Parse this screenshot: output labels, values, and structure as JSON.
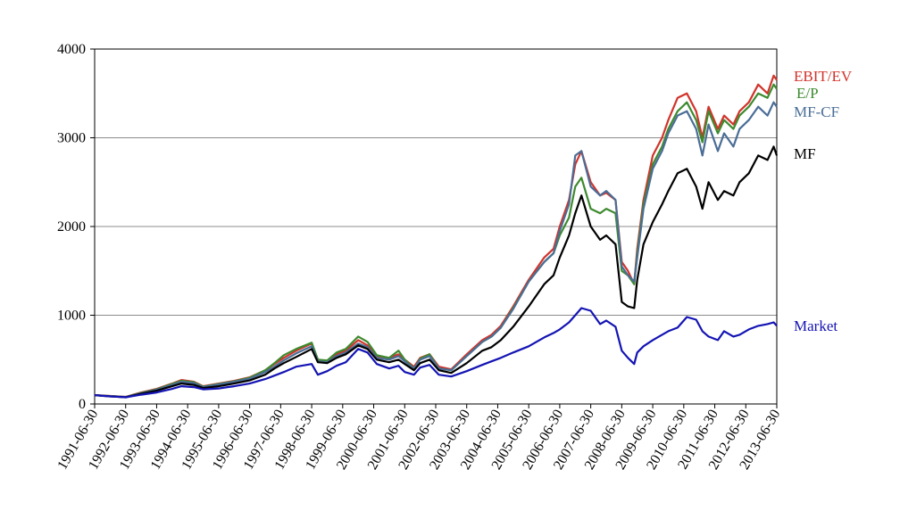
{
  "chart_data": {
    "type": "line",
    "title": "",
    "xlabel": "",
    "ylabel": "",
    "ylim": [
      0,
      4000
    ],
    "yticks": [
      0,
      1000,
      2000,
      3000,
      4000
    ],
    "xlim": [
      1991.5,
      2013.5
    ],
    "xtick_labels": [
      "1991-06-30",
      "1992-06-30",
      "1993-06-30",
      "1994-06-30",
      "1995-06-30",
      "1996-06-30",
      "1997-06-30",
      "1998-06-30",
      "1999-06-30",
      "2000-06-30",
      "2001-06-30",
      "2002-06-30",
      "2003-06-30",
      "2004-06-30",
      "2005-06-30",
      "2006-06-30",
      "2007-06-30",
      "2008-06-30",
      "2009-06-30",
      "2010-06-30",
      "2011-06-30",
      "2012-06-30",
      "2013-06-30"
    ],
    "grid": "horizontal",
    "legend": "right, labels at line ends",
    "series": [
      {
        "name": "EBIT/EV",
        "color": "#d0342c",
        "x": [
          1991.5,
          1992.0,
          1992.5,
          1993.0,
          1993.5,
          1994.0,
          1994.3,
          1994.7,
          1995.0,
          1995.5,
          1996.0,
          1996.5,
          1997.0,
          1997.3,
          1997.6,
          1998.0,
          1998.5,
          1998.7,
          1999.0,
          1999.3,
          1999.6,
          2000.0,
          2000.3,
          2000.6,
          2001.0,
          2001.3,
          2001.5,
          2001.8,
          2002.0,
          2002.3,
          2002.6,
          2003.0,
          2003.5,
          2004.0,
          2004.3,
          2004.6,
          2005.0,
          2005.5,
          2006.0,
          2006.3,
          2006.5,
          2006.8,
          2007.0,
          2007.2,
          2007.5,
          2007.8,
          2008.0,
          2008.3,
          2008.5,
          2008.7,
          2008.9,
          2009.0,
          2009.2,
          2009.5,
          2009.8,
          2010.0,
          2010.3,
          2010.6,
          2010.9,
          2011.1,
          2011.3,
          2011.6,
          2011.8,
          2012.1,
          2012.3,
          2012.6,
          2012.9,
          2013.2,
          2013.4,
          2013.5
        ],
        "y": [
          100,
          90,
          80,
          130,
          170,
          230,
          270,
          250,
          200,
          230,
          260,
          300,
          380,
          450,
          520,
          600,
          680,
          500,
          480,
          560,
          600,
          720,
          660,
          540,
          520,
          560,
          500,
          420,
          520,
          560,
          420,
          390,
          560,
          720,
          780,
          880,
          1100,
          1400,
          1650,
          1750,
          2000,
          2300,
          2700,
          2850,
          2500,
          2350,
          2380,
          2300,
          1600,
          1500,
          1350,
          1750,
          2300,
          2800,
          3000,
          3200,
          3450,
          3500,
          3300,
          3000,
          3350,
          3100,
          3250,
          3150,
          3300,
          3400,
          3600,
          3500,
          3700,
          3650
        ]
      },
      {
        "name": "E/P",
        "color": "#3d8a2e",
        "x": [
          1991.5,
          1992.0,
          1992.5,
          1993.0,
          1993.5,
          1994.0,
          1994.3,
          1994.7,
          1995.0,
          1995.5,
          1996.0,
          1996.5,
          1997.0,
          1997.3,
          1997.6,
          1998.0,
          1998.5,
          1998.7,
          1999.0,
          1999.3,
          1999.6,
          2000.0,
          2000.3,
          2000.6,
          2001.0,
          2001.3,
          2001.5,
          2001.8,
          2002.0,
          2002.3,
          2002.6,
          2003.0,
          2003.5,
          2004.0,
          2004.3,
          2004.6,
          2005.0,
          2005.5,
          2006.0,
          2006.3,
          2006.5,
          2006.8,
          2007.0,
          2007.2,
          2007.5,
          2007.8,
          2008.0,
          2008.3,
          2008.5,
          2008.7,
          2008.9,
          2009.0,
          2009.2,
          2009.5,
          2009.8,
          2010.0,
          2010.3,
          2010.6,
          2010.9,
          2011.1,
          2011.3,
          2011.6,
          2011.8,
          2012.1,
          2012.3,
          2012.6,
          2012.9,
          2013.2,
          2013.4,
          2013.5
        ],
        "y": [
          100,
          88,
          78,
          125,
          165,
          225,
          260,
          245,
          195,
          225,
          255,
          295,
          380,
          460,
          550,
          620,
          690,
          500,
          490,
          580,
          620,
          760,
          700,
          550,
          520,
          600,
          500,
          400,
          510,
          560,
          400,
          380,
          540,
          700,
          760,
          860,
          1080,
          1380,
          1600,
          1700,
          1900,
          2100,
          2450,
          2550,
          2200,
          2150,
          2200,
          2150,
          1500,
          1450,
          1350,
          1700,
          2250,
          2700,
          2900,
          3100,
          3300,
          3400,
          3200,
          2950,
          3300,
          3050,
          3200,
          3100,
          3250,
          3350,
          3500,
          3450,
          3600,
          3550
        ]
      },
      {
        "name": "MF-CF",
        "color": "#4a6d96",
        "x": [
          1991.5,
          1992.0,
          1992.5,
          1993.0,
          1993.5,
          1994.0,
          1994.3,
          1994.7,
          1995.0,
          1995.5,
          1996.0,
          1996.5,
          1997.0,
          1997.3,
          1997.6,
          1998.0,
          1998.5,
          1998.7,
          1999.0,
          1999.3,
          1999.6,
          2000.0,
          2000.3,
          2000.6,
          2001.0,
          2001.3,
          2001.5,
          2001.8,
          2002.0,
          2002.3,
          2002.6,
          2003.0,
          2003.5,
          2004.0,
          2004.3,
          2004.6,
          2005.0,
          2005.5,
          2006.0,
          2006.3,
          2006.5,
          2006.8,
          2007.0,
          2007.2,
          2007.5,
          2007.8,
          2008.0,
          2008.3,
          2008.5,
          2008.7,
          2008.9,
          2009.0,
          2009.2,
          2009.5,
          2009.8,
          2010.0,
          2010.3,
          2010.6,
          2010.9,
          2011.1,
          2011.3,
          2011.6,
          2011.8,
          2012.1,
          2012.3,
          2012.6,
          2012.9,
          2013.2,
          2013.4,
          2013.5
        ],
        "y": [
          100,
          88,
          78,
          120,
          160,
          215,
          250,
          235,
          190,
          220,
          250,
          285,
          360,
          420,
          490,
          570,
          650,
          480,
          470,
          540,
          580,
          680,
          640,
          520,
          500,
          540,
          480,
          400,
          500,
          540,
          400,
          380,
          540,
          700,
          760,
          860,
          1070,
          1380,
          1600,
          1700,
          1950,
          2250,
          2800,
          2850,
          2450,
          2350,
          2400,
          2300,
          1550,
          1450,
          1380,
          1650,
          2200,
          2650,
          2850,
          3050,
          3250,
          3300,
          3100,
          2800,
          3150,
          2850,
          3050,
          2900,
          3100,
          3200,
          3350,
          3250,
          3400,
          3350
        ]
      },
      {
        "name": "MF",
        "color": "#000000",
        "x": [
          1991.5,
          1992.0,
          1992.5,
          1993.0,
          1993.5,
          1994.0,
          1994.3,
          1994.7,
          1995.0,
          1995.5,
          1996.0,
          1996.5,
          1997.0,
          1997.3,
          1997.6,
          1998.0,
          1998.5,
          1998.7,
          1999.0,
          1999.3,
          1999.6,
          2000.0,
          2000.3,
          2000.6,
          2001.0,
          2001.3,
          2001.5,
          2001.8,
          2002.0,
          2002.3,
          2002.6,
          2003.0,
          2003.5,
          2004.0,
          2004.3,
          2004.6,
          2005.0,
          2005.5,
          2006.0,
          2006.3,
          2006.5,
          2006.8,
          2007.0,
          2007.2,
          2007.5,
          2007.8,
          2008.0,
          2008.3,
          2008.5,
          2008.7,
          2008.9,
          2009.0,
          2009.2,
          2009.5,
          2009.8,
          2010.0,
          2010.3,
          2010.6,
          2010.9,
          2011.1,
          2011.3,
          2011.6,
          2011.8,
          2012.1,
          2012.3,
          2012.6,
          2012.9,
          2013.2,
          2013.4,
          2013.5
        ],
        "y": [
          100,
          85,
          75,
          115,
          150,
          200,
          230,
          215,
          180,
          200,
          230,
          265,
          330,
          400,
          460,
          530,
          620,
          470,
          460,
          520,
          560,
          660,
          620,
          500,
          470,
          500,
          450,
          380,
          460,
          500,
          380,
          350,
          460,
          600,
          640,
          720,
          870,
          1100,
          1350,
          1450,
          1650,
          1900,
          2150,
          2350,
          2000,
          1850,
          1900,
          1800,
          1150,
          1100,
          1080,
          1400,
          1800,
          2050,
          2250,
          2400,
          2600,
          2650,
          2450,
          2200,
          2500,
          2300,
          2400,
          2350,
          2500,
          2600,
          2800,
          2750,
          2900,
          2800
        ]
      },
      {
        "name": "Market",
        "color": "#1414b4",
        "x": [
          1991.5,
          1992.0,
          1992.5,
          1993.0,
          1993.5,
          1994.0,
          1994.3,
          1994.7,
          1995.0,
          1995.5,
          1996.0,
          1996.5,
          1997.0,
          1997.3,
          1997.6,
          1998.0,
          1998.5,
          1998.7,
          1999.0,
          1999.3,
          1999.6,
          2000.0,
          2000.3,
          2000.6,
          2001.0,
          2001.3,
          2001.5,
          2001.8,
          2002.0,
          2002.3,
          2002.6,
          2003.0,
          2003.5,
          2004.0,
          2004.3,
          2004.6,
          2005.0,
          2005.5,
          2006.0,
          2006.3,
          2006.5,
          2006.8,
          2007.0,
          2007.2,
          2007.5,
          2007.8,
          2008.0,
          2008.3,
          2008.5,
          2008.7,
          2008.9,
          2009.0,
          2009.2,
          2009.5,
          2009.8,
          2010.0,
          2010.3,
          2010.6,
          2010.9,
          2011.1,
          2011.3,
          2011.6,
          2011.8,
          2012.1,
          2012.3,
          2012.6,
          2012.9,
          2013.2,
          2013.4,
          2013.5
        ],
        "y": [
          100,
          85,
          75,
          105,
          130,
          170,
          200,
          190,
          165,
          175,
          200,
          230,
          280,
          320,
          360,
          420,
          450,
          330,
          370,
          430,
          470,
          620,
          580,
          450,
          400,
          430,
          360,
          330,
          410,
          440,
          330,
          310,
          370,
          440,
          480,
          520,
          580,
          650,
          750,
          800,
          840,
          920,
          1000,
          1080,
          1050,
          900,
          940,
          870,
          600,
          520,
          450,
          580,
          650,
          720,
          780,
          820,
          860,
          980,
          950,
          820,
          760,
          720,
          820,
          760,
          780,
          840,
          880,
          900,
          920,
          880
        ]
      }
    ]
  }
}
